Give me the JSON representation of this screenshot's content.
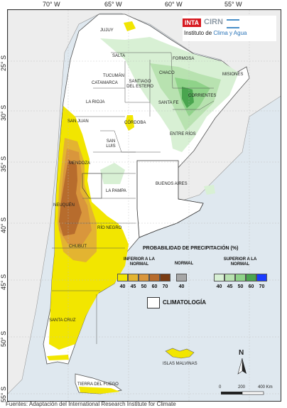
{
  "map": {
    "longitude_labels": [
      "70° W",
      "65° W",
      "60° W",
      "55° W"
    ],
    "latitude_labels": [
      "25° S",
      "30° S",
      "35° S",
      "40° S",
      "45° S",
      "50° S",
      "55° S"
    ],
    "provinces": [
      "JUJUY",
      "SALTA",
      "FORMOSA",
      "MISIONES",
      "CHACO",
      "TUCUMÁN",
      "SANTIAGO DEL ESTERO",
      "CATAMARCA",
      "CORRIENTES",
      "LA RIOJA",
      "SANTA FE",
      "SAN JUAN",
      "CÓRDOBA",
      "ENTRE RÍOS",
      "SAN LUIS",
      "MENDOZA",
      "BUENOS AIRES",
      "LA PAMPA",
      "NEUQUÉN",
      "RÍO NEGRO",
      "CHUBUT",
      "SANTA CRUZ",
      "TIERRA DEL FUEGO",
      "ISLAS MALVINAS"
    ],
    "scale_labels": [
      "0",
      "200",
      "400 Km"
    ],
    "north_label": "N",
    "colors": {
      "ocean": "#dfe8ef",
      "neighbor": "#ededed",
      "land": "#ffffff",
      "below40": "#f2e600",
      "below45": "#e3b431",
      "below50": "#d9963c",
      "below60": "#b76c2d",
      "below70": "#7a3c14",
      "normal": "#a6a6a6",
      "above40": "#d8f0d4",
      "above45": "#b8e2b0",
      "above50": "#8fd389",
      "above60": "#4aa54f",
      "above70": "#1a3bff"
    }
  },
  "logo": {
    "inta": "INTA",
    "cirn": "CIRN",
    "institute_prefix": "Instituto de ",
    "institute_accent": "Clima y Agua"
  },
  "legend": {
    "title": "PROBABILIDAD DE PRECIPITACIÓN (%)",
    "below_label": "INFERIOR A LA NORMAL",
    "normal_label": "NORMAL",
    "above_label": "SUPERIOR A LA NORMAL",
    "below_values": [
      "40",
      "45",
      "50",
      "60",
      "70"
    ],
    "normal_values": [
      "40"
    ],
    "above_values": [
      "40",
      "45",
      "50",
      "60",
      "70"
    ],
    "climatology_label": "CLIMATOLOGÍA"
  },
  "footer": "Fuentes: Adaptación del International Research Institute for Climate"
}
